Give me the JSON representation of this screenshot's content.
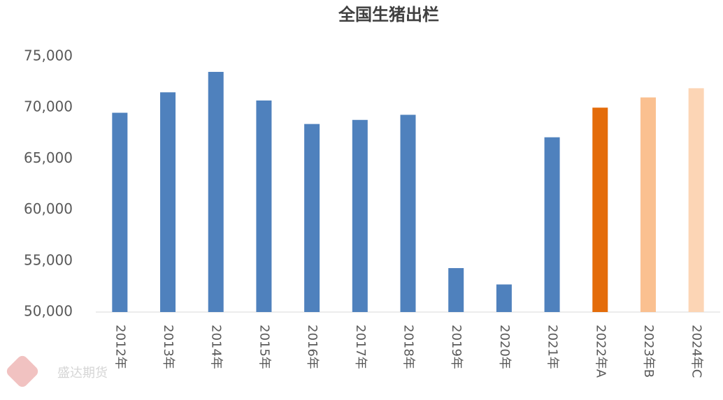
{
  "chart_data": {
    "type": "bar",
    "title": "全国生猪出栏",
    "categories": [
      "2012年",
      "2013年",
      "2014年",
      "2015年",
      "2016年",
      "2017年",
      "2018年",
      "2019年",
      "2020年",
      "2021年",
      "2022年A",
      "2023年B",
      "2024年C"
    ],
    "values": [
      69500,
      71500,
      73500,
      70700,
      68400,
      68800,
      69300,
      54300,
      52700,
      67100,
      70000,
      71000,
      71900
    ],
    "colors": [
      "#4f81bd",
      "#4f81bd",
      "#4f81bd",
      "#4f81bd",
      "#4f81bd",
      "#4f81bd",
      "#4f81bd",
      "#4f81bd",
      "#4f81bd",
      "#4f81bd",
      "#e46c0a",
      "#fac090",
      "#fcd5b5"
    ],
    "ylim": [
      50000,
      75000
    ],
    "yticks": [
      {
        "value": 50000,
        "label": "50,000"
      },
      {
        "value": 55000,
        "label": "55,000"
      },
      {
        "value": 60000,
        "label": "60,000"
      },
      {
        "value": 65000,
        "label": "65,000"
      },
      {
        "value": 70000,
        "label": "70,000"
      },
      {
        "value": 75000,
        "label": "75,000"
      }
    ],
    "grid": false
  },
  "watermark": "盛达期货"
}
